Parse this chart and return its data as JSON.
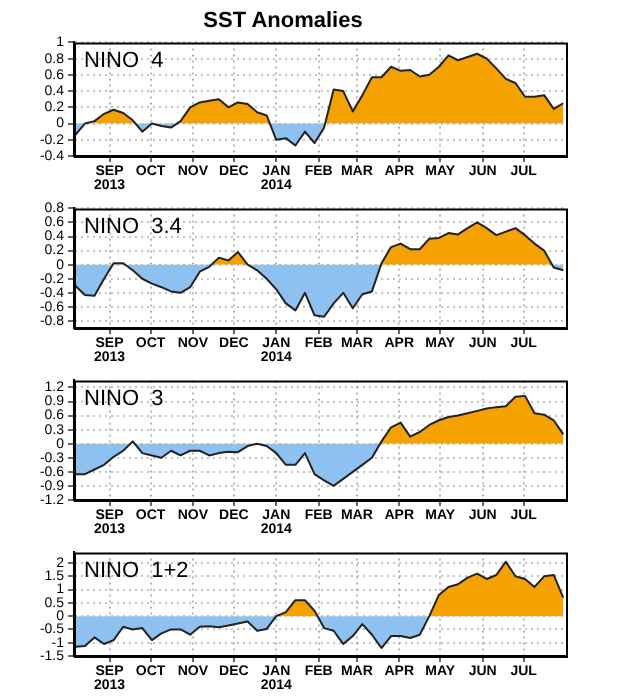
{
  "chart_data": [
    {
      "type": "area",
      "title": "SST Anomalies",
      "annotations": [
        "NINO  4"
      ],
      "x": [
        "2013-08-21",
        "2013-08-28",
        "2013-09-04",
        "2013-09-11",
        "2013-09-18",
        "2013-09-25",
        "2013-10-02",
        "2013-10-09",
        "2013-10-16",
        "2013-10-23",
        "2013-10-30",
        "2013-11-06",
        "2013-11-13",
        "2013-11-20",
        "2013-11-27",
        "2013-12-04",
        "2013-12-11",
        "2013-12-18",
        "2013-12-25",
        "2014-01-01",
        "2014-01-08",
        "2014-01-15",
        "2014-01-22",
        "2014-01-29",
        "2014-02-05",
        "2014-02-12",
        "2014-02-19",
        "2014-02-26",
        "2014-03-05",
        "2014-03-12",
        "2014-03-19",
        "2014-03-26",
        "2014-04-02",
        "2014-04-09",
        "2014-04-16",
        "2014-04-23",
        "2014-04-30",
        "2014-05-07",
        "2014-05-14",
        "2014-05-21",
        "2014-05-28",
        "2014-06-04",
        "2014-06-11",
        "2014-06-18",
        "2014-06-25",
        "2014-07-02",
        "2014-07-09",
        "2014-07-16",
        "2014-07-23",
        "2014-07-30",
        "2014-08-06",
        "2014-08-13"
      ],
      "series": [
        {
          "color": "#222222",
          "values": [
            -0.14,
            0.0,
            0.03,
            0.12,
            0.17,
            0.13,
            0.04,
            -0.1,
            0.0,
            -0.03,
            -0.05,
            0.03,
            0.2,
            0.26,
            0.28,
            0.3,
            0.2,
            0.26,
            0.24,
            0.14,
            0.1,
            -0.2,
            -0.18,
            -0.27,
            -0.1,
            -0.24,
            -0.05,
            0.42,
            0.4,
            0.15,
            0.35,
            0.57,
            0.57,
            0.7,
            0.65,
            0.66,
            0.58,
            0.6,
            0.7,
            0.84,
            0.78,
            0.82,
            0.86,
            0.8,
            0.68,
            0.55,
            0.5,
            0.33,
            0.33,
            0.35,
            0.18,
            0.25
          ]
        }
      ],
      "colors": [
        "#f5a200",
        "#8ec1f0"
      ],
      "xlim": [
        "2013-08-20",
        "2014-08-15"
      ],
      "xticks": [
        {
          "value": "2013-09-15",
          "label": "SEP\n2013"
        },
        {
          "value": "2013-10-15",
          "label": "OCT"
        },
        {
          "value": "2013-11-15",
          "label": "NOV"
        },
        {
          "value": "2013-12-15",
          "label": "DEC"
        },
        {
          "value": "2014-01-15",
          "label": "JAN\n2014"
        },
        {
          "value": "2014-02-15",
          "label": "FEB"
        },
        {
          "value": "2014-03-15",
          "label": "MAR"
        },
        {
          "value": "2014-04-15",
          "label": "APR"
        },
        {
          "value": "2014-05-15",
          "label": "MAY"
        },
        {
          "value": "2014-06-15",
          "label": "JUN"
        },
        {
          "value": "2014-07-15",
          "label": "JUL"
        }
      ],
      "ylim": [
        -0.4,
        1
      ],
      "yticks": [
        -0.4,
        -0.2,
        0,
        0.2,
        0.4,
        0.6,
        0.8,
        1
      ],
      "grid": true
    },
    {
      "type": "area",
      "annotations": [
        "NINO  3.4"
      ],
      "x": [
        "2013-08-21",
        "2013-08-28",
        "2013-09-04",
        "2013-09-11",
        "2013-09-18",
        "2013-09-25",
        "2013-10-02",
        "2013-10-09",
        "2013-10-16",
        "2013-10-23",
        "2013-10-30",
        "2013-11-06",
        "2013-11-13",
        "2013-11-20",
        "2013-11-27",
        "2013-12-04",
        "2013-12-11",
        "2013-12-18",
        "2013-12-25",
        "2014-01-01",
        "2014-01-08",
        "2014-01-15",
        "2014-01-22",
        "2014-01-29",
        "2014-02-05",
        "2014-02-12",
        "2014-02-19",
        "2014-02-26",
        "2014-03-05",
        "2014-03-12",
        "2014-03-19",
        "2014-03-26",
        "2014-04-02",
        "2014-04-09",
        "2014-04-16",
        "2014-04-23",
        "2014-04-30",
        "2014-05-07",
        "2014-05-14",
        "2014-05-21",
        "2014-05-28",
        "2014-06-04",
        "2014-06-11",
        "2014-06-18",
        "2014-06-25",
        "2014-07-02",
        "2014-07-09",
        "2014-07-16",
        "2014-07-23",
        "2014-07-30",
        "2014-08-06",
        "2014-08-13"
      ],
      "series": [
        {
          "color": "#222222",
          "values": [
            -0.3,
            -0.43,
            -0.44,
            -0.2,
            0.02,
            0.02,
            -0.08,
            -0.2,
            -0.27,
            -0.32,
            -0.38,
            -0.4,
            -0.32,
            -0.1,
            -0.03,
            0.1,
            0.06,
            0.18,
            0.0,
            -0.08,
            -0.2,
            -0.35,
            -0.55,
            -0.65,
            -0.4,
            -0.72,
            -0.74,
            -0.55,
            -0.4,
            -0.62,
            -0.42,
            -0.38,
            0.02,
            0.25,
            0.3,
            0.22,
            0.22,
            0.37,
            0.38,
            0.45,
            0.43,
            0.52,
            0.6,
            0.52,
            0.42,
            0.47,
            0.52,
            0.42,
            0.3,
            0.2,
            -0.04,
            -0.08
          ]
        }
      ],
      "colors": [
        "#f5a200",
        "#8ec1f0"
      ],
      "xlim": [
        "2013-08-20",
        "2014-08-15"
      ],
      "xticks": [
        {
          "value": "2013-09-15",
          "label": "SEP\n2013"
        },
        {
          "value": "2013-10-15",
          "label": "OCT"
        },
        {
          "value": "2013-11-15",
          "label": "NOV"
        },
        {
          "value": "2013-12-15",
          "label": "DEC"
        },
        {
          "value": "2014-01-15",
          "label": "JAN\n2014"
        },
        {
          "value": "2014-02-15",
          "label": "FEB"
        },
        {
          "value": "2014-03-15",
          "label": "MAR"
        },
        {
          "value": "2014-04-15",
          "label": "APR"
        },
        {
          "value": "2014-05-15",
          "label": "MAY"
        },
        {
          "value": "2014-06-15",
          "label": "JUN"
        },
        {
          "value": "2014-07-15",
          "label": "JUL"
        }
      ],
      "ylim": [
        -0.9,
        0.8
      ],
      "yticks": [
        -0.8,
        -0.6,
        -0.4,
        -0.2,
        0,
        0.2,
        0.4,
        0.6,
        0.8
      ],
      "grid": true
    },
    {
      "type": "area",
      "annotations": [
        "NINO  3"
      ],
      "x": [
        "2013-08-21",
        "2013-08-28",
        "2013-09-04",
        "2013-09-11",
        "2013-09-18",
        "2013-09-25",
        "2013-10-02",
        "2013-10-09",
        "2013-10-16",
        "2013-10-23",
        "2013-10-30",
        "2013-11-06",
        "2013-11-13",
        "2013-11-20",
        "2013-11-27",
        "2013-12-04",
        "2013-12-11",
        "2013-12-18",
        "2013-12-25",
        "2014-01-01",
        "2014-01-08",
        "2014-01-15",
        "2014-01-22",
        "2014-01-29",
        "2014-02-05",
        "2014-02-12",
        "2014-02-19",
        "2014-02-26",
        "2014-03-05",
        "2014-03-12",
        "2014-03-19",
        "2014-03-26",
        "2014-04-02",
        "2014-04-09",
        "2014-04-16",
        "2014-04-23",
        "2014-04-30",
        "2014-05-07",
        "2014-05-14",
        "2014-05-21",
        "2014-05-28",
        "2014-06-04",
        "2014-06-11",
        "2014-06-18",
        "2014-06-25",
        "2014-07-02",
        "2014-07-09",
        "2014-07-16",
        "2014-07-23",
        "2014-07-30",
        "2014-08-06",
        "2014-08-13"
      ],
      "series": [
        {
          "color": "#222222",
          "values": [
            -0.65,
            -0.65,
            -0.55,
            -0.45,
            -0.28,
            -0.15,
            0.05,
            -0.2,
            -0.25,
            -0.3,
            -0.15,
            -0.25,
            -0.15,
            -0.15,
            -0.25,
            -0.2,
            -0.17,
            -0.18,
            -0.05,
            0.0,
            -0.05,
            -0.2,
            -0.45,
            -0.45,
            -0.2,
            -0.65,
            -0.78,
            -0.9,
            -0.75,
            -0.6,
            -0.45,
            -0.3,
            0.05,
            0.35,
            0.45,
            0.15,
            0.25,
            0.4,
            0.5,
            0.57,
            0.6,
            0.65,
            0.7,
            0.75,
            0.78,
            0.8,
            1.0,
            1.02,
            0.65,
            0.62,
            0.5,
            0.2
          ]
        }
      ],
      "colors": [
        "#f5a200",
        "#8ec1f0"
      ],
      "xlim": [
        "2013-08-20",
        "2014-08-15"
      ],
      "xticks": [
        {
          "value": "2013-09-15",
          "label": "SEP\n2013"
        },
        {
          "value": "2013-10-15",
          "label": "OCT"
        },
        {
          "value": "2013-11-15",
          "label": "NOV"
        },
        {
          "value": "2013-12-15",
          "label": "DEC"
        },
        {
          "value": "2014-01-15",
          "label": "JAN\n2014"
        },
        {
          "value": "2014-02-15",
          "label": "FEB"
        },
        {
          "value": "2014-03-15",
          "label": "MAR"
        },
        {
          "value": "2014-04-15",
          "label": "APR"
        },
        {
          "value": "2014-05-15",
          "label": "MAY"
        },
        {
          "value": "2014-06-15",
          "label": "JUN"
        },
        {
          "value": "2014-07-15",
          "label": "JUL"
        }
      ],
      "ylim": [
        -1.2,
        1.35
      ],
      "yticks": [
        -1.2,
        -0.9,
        -0.6,
        -0.3,
        0,
        0.3,
        0.6,
        0.9,
        1.2
      ],
      "grid": true
    },
    {
      "type": "area",
      "annotations": [
        "NINO  1+2"
      ],
      "x": [
        "2013-08-21",
        "2013-08-28",
        "2013-09-04",
        "2013-09-11",
        "2013-09-18",
        "2013-09-25",
        "2013-10-02",
        "2013-10-09",
        "2013-10-16",
        "2013-10-23",
        "2013-10-30",
        "2013-11-06",
        "2013-11-13",
        "2013-11-20",
        "2013-11-27",
        "2013-12-04",
        "2013-12-11",
        "2013-12-18",
        "2013-12-25",
        "2014-01-01",
        "2014-01-08",
        "2014-01-15",
        "2014-01-22",
        "2014-01-29",
        "2014-02-05",
        "2014-02-12",
        "2014-02-19",
        "2014-02-26",
        "2014-03-05",
        "2014-03-12",
        "2014-03-19",
        "2014-03-26",
        "2014-04-02",
        "2014-04-09",
        "2014-04-16",
        "2014-04-23",
        "2014-04-30",
        "2014-05-07",
        "2014-05-14",
        "2014-05-21",
        "2014-05-28",
        "2014-06-04",
        "2014-06-11",
        "2014-06-18",
        "2014-06-25",
        "2014-07-02",
        "2014-07-09",
        "2014-07-16",
        "2014-07-23",
        "2014-07-30",
        "2014-08-06",
        "2014-08-13"
      ],
      "series": [
        {
          "color": "#222222",
          "values": [
            -1.15,
            -1.12,
            -0.8,
            -1.05,
            -0.9,
            -0.4,
            -0.5,
            -0.45,
            -0.9,
            -0.65,
            -0.5,
            -0.5,
            -0.7,
            -0.4,
            -0.38,
            -0.42,
            -0.35,
            -0.28,
            -0.2,
            -0.55,
            -0.48,
            0.0,
            0.15,
            0.6,
            0.6,
            0.2,
            -0.45,
            -0.55,
            -1.05,
            -0.75,
            -0.3,
            -0.7,
            -1.2,
            -0.75,
            -0.75,
            -0.82,
            -0.7,
            0.0,
            0.8,
            1.1,
            1.2,
            1.45,
            1.6,
            1.4,
            1.55,
            2.05,
            1.5,
            1.4,
            1.1,
            1.5,
            1.55,
            0.7
          ]
        }
      ],
      "colors": [
        "#f5a200",
        "#8ec1f0"
      ],
      "xlim": [
        "2013-08-20",
        "2014-08-15"
      ],
      "xticks": [
        {
          "value": "2013-09-15",
          "label": "SEP\n2013"
        },
        {
          "value": "2013-10-15",
          "label": "OCT"
        },
        {
          "value": "2013-11-15",
          "label": "NOV"
        },
        {
          "value": "2013-12-15",
          "label": "DEC"
        },
        {
          "value": "2014-01-15",
          "label": "JAN\n2014"
        },
        {
          "value": "2014-02-15",
          "label": "FEB"
        },
        {
          "value": "2014-03-15",
          "label": "MAR"
        },
        {
          "value": "2014-04-15",
          "label": "APR"
        },
        {
          "value": "2014-05-15",
          "label": "MAY"
        },
        {
          "value": "2014-06-15",
          "label": "JUN"
        },
        {
          "value": "2014-07-15",
          "label": "JUL"
        }
      ],
      "ylim": [
        -1.5,
        2.4
      ],
      "yticks": [
        -1.5,
        -1,
        -0.5,
        0,
        0.5,
        1,
        1.5,
        2
      ],
      "grid": true
    }
  ]
}
